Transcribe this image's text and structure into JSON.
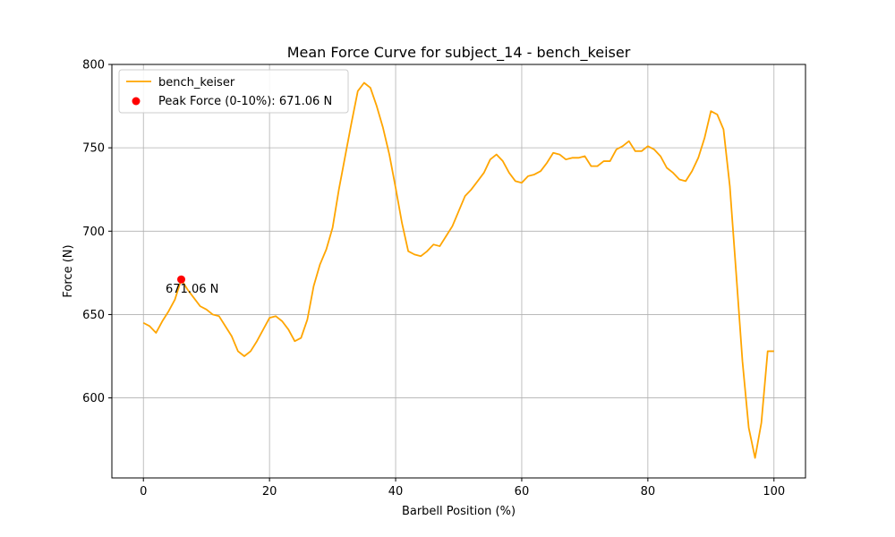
{
  "chart_data": {
    "type": "line",
    "title": "Mean Force Curve for subject_14 - bench_keiser",
    "xlabel": "Barbell Position (%)",
    "ylabel": "Force (N)",
    "xlim": [
      -5,
      105
    ],
    "ylim": [
      552,
      800
    ],
    "xticks": [
      0,
      20,
      40,
      60,
      80,
      100
    ],
    "yticks": [
      600,
      650,
      700,
      750,
      800
    ],
    "grid": true,
    "legend_position": "top-left",
    "series": [
      {
        "name": "bench_keiser",
        "color": "#ffa500",
        "x": [
          0,
          1,
          2,
          3,
          4,
          5,
          6,
          7,
          8,
          9,
          10,
          11,
          12,
          13,
          14,
          15,
          16,
          17,
          18,
          19,
          20,
          21,
          22,
          23,
          24,
          25,
          26,
          27,
          28,
          29,
          30,
          31,
          32,
          33,
          34,
          35,
          36,
          37,
          38,
          39,
          40,
          41,
          42,
          43,
          44,
          45,
          46,
          47,
          48,
          49,
          50,
          51,
          52,
          53,
          54,
          55,
          56,
          57,
          58,
          59,
          60,
          61,
          62,
          63,
          64,
          65,
          66,
          67,
          68,
          69,
          70,
          71,
          72,
          73,
          74,
          75,
          76,
          77,
          78,
          79,
          80,
          81,
          82,
          83,
          84,
          85,
          86,
          87,
          88,
          89,
          90,
          91,
          92,
          93,
          94,
          95,
          96,
          97,
          98,
          99,
          100
        ],
        "y": [
          645,
          643,
          639,
          646,
          652,
          659,
          671,
          665,
          660,
          655,
          653,
          650,
          649,
          643,
          637,
          628,
          625,
          628,
          634,
          641,
          648,
          649,
          646,
          641,
          634,
          636,
          647,
          667,
          680,
          689,
          702,
          725,
          745,
          765,
          784,
          789,
          786,
          775,
          762,
          746,
          726,
          705,
          688,
          686,
          685,
          688,
          692,
          691,
          697,
          703,
          712,
          721,
          725,
          730,
          735,
          743,
          746,
          742,
          735,
          730,
          729,
          733,
          734,
          736,
          741,
          747,
          746,
          743,
          744,
          744,
          745,
          739,
          739,
          742,
          742,
          749,
          751,
          754,
          748,
          748,
          751,
          749,
          745,
          738,
          735,
          731,
          730,
          736,
          744,
          756,
          772,
          770,
          761,
          727,
          675,
          622,
          582,
          564,
          585,
          628,
          628
        ]
      }
    ],
    "peak": {
      "legend_label": "Peak Force (0-10%): 671.06 N",
      "x": 6,
      "y": 671.06,
      "color": "#ff0000",
      "annotation": "671.06 N"
    }
  }
}
